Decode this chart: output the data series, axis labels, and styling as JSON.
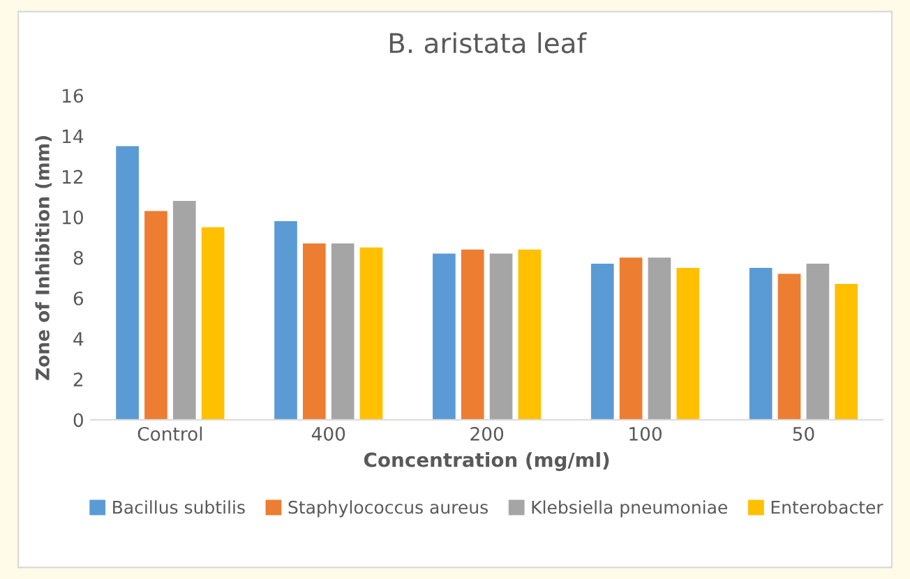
{
  "chart_data": {
    "type": "bar",
    "title": "B. aristata leaf",
    "xlabel": "Concentration (mg/ml)",
    "ylabel": "Zone of Inhibition (mm)",
    "categories": [
      "Control",
      "400",
      "200",
      "100",
      "50"
    ],
    "series": [
      {
        "name": "Bacillus subtilis",
        "color": "#5b9bd5",
        "values": [
          13.5,
          9.8,
          8.2,
          7.7,
          7.5
        ]
      },
      {
        "name": "Staphylococcus aureus",
        "color": "#ed7d31",
        "values": [
          10.3,
          8.7,
          8.4,
          8.0,
          7.2
        ]
      },
      {
        "name": "Klebsiella pneumoniae",
        "color": "#a5a5a5",
        "values": [
          10.8,
          8.7,
          8.2,
          8.0,
          7.7
        ]
      },
      {
        "name": "Enterobacter",
        "color": "#ffc000",
        "values": [
          9.5,
          8.5,
          8.4,
          7.5,
          6.7
        ]
      }
    ],
    "ylim": [
      0,
      16
    ],
    "yticks": [
      0,
      2,
      4,
      6,
      8,
      10,
      12,
      14,
      16
    ],
    "grid": false,
    "legend": "bottom"
  }
}
